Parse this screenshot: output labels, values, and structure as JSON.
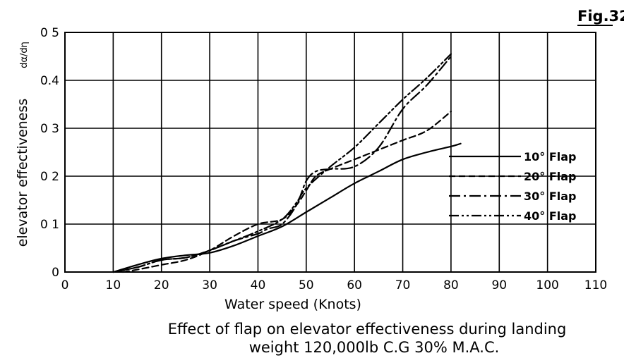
{
  "figure_label": "Fig.32.",
  "caption": {
    "line1": "Effect of flap on elevator effectiveness during landing",
    "line2": "weight 120,000lb C.G 30% M.A.C."
  },
  "chart_data": {
    "type": "line",
    "title": "",
    "xlabel": "Water speed  (Knots)",
    "ylabel": "elevator effectiveness",
    "ylabel_symbol": "dα/dη",
    "xlim": [
      0,
      110
    ],
    "ylim": [
      0,
      0.5
    ],
    "x_ticks": [
      0,
      10,
      20,
      30,
      40,
      50,
      60,
      70,
      80,
      90,
      100,
      110
    ],
    "x_tick_labels": [
      "0",
      "10",
      "20",
      "30",
      "40",
      "50",
      "60",
      "70",
      "80",
      "90",
      "100",
      "110"
    ],
    "y_ticks": [
      0,
      0.1,
      0.2,
      0.3,
      0.4,
      0.5
    ],
    "y_tick_labels": [
      "0",
      "0 1",
      "0 2",
      "0 3",
      "0.4",
      "0 5"
    ],
    "grid": true,
    "legend_position": "right",
    "series": [
      {
        "name": "10° Flap",
        "dash": "solid",
        "x": [
          10,
          15,
          20,
          25,
          30,
          35,
          40,
          45,
          50,
          55,
          60,
          65,
          70,
          75,
          80,
          82
        ],
        "y": [
          0,
          0.015,
          0.028,
          0.035,
          0.04,
          0.055,
          0.075,
          0.095,
          0.125,
          0.155,
          0.185,
          0.21,
          0.235,
          0.25,
          0.262,
          0.268
        ]
      },
      {
        "name": "20° Flap",
        "dash": "dashed",
        "x": [
          12,
          15,
          20,
          25,
          30,
          35,
          40,
          45,
          48,
          50,
          52,
          55,
          60,
          65,
          70,
          75,
          80
        ],
        "y": [
          0,
          0.005,
          0.015,
          0.025,
          0.045,
          0.075,
          0.1,
          0.11,
          0.14,
          0.17,
          0.2,
          0.215,
          0.235,
          0.255,
          0.275,
          0.295,
          0.335
        ]
      },
      {
        "name": "30° Flap",
        "dash": "dash-dot",
        "x": [
          10,
          15,
          20,
          25,
          30,
          35,
          40,
          42,
          45,
          48,
          50,
          52,
          55,
          60,
          65,
          70,
          75,
          80
        ],
        "y": [
          0,
          0.01,
          0.025,
          0.03,
          0.045,
          0.065,
          0.08,
          0.09,
          0.1,
          0.14,
          0.19,
          0.21,
          0.215,
          0.22,
          0.26,
          0.34,
          0.39,
          0.45
        ]
      },
      {
        "name": "40° Flap",
        "dash": "dash-dot-dot",
        "x": [
          10,
          15,
          20,
          25,
          30,
          35,
          40,
          45,
          48,
          50,
          55,
          60,
          65,
          70,
          75,
          80
        ],
        "y": [
          0,
          0.01,
          0.025,
          0.03,
          0.045,
          0.065,
          0.085,
          0.11,
          0.145,
          0.175,
          0.22,
          0.26,
          0.31,
          0.36,
          0.405,
          0.455
        ]
      }
    ]
  }
}
